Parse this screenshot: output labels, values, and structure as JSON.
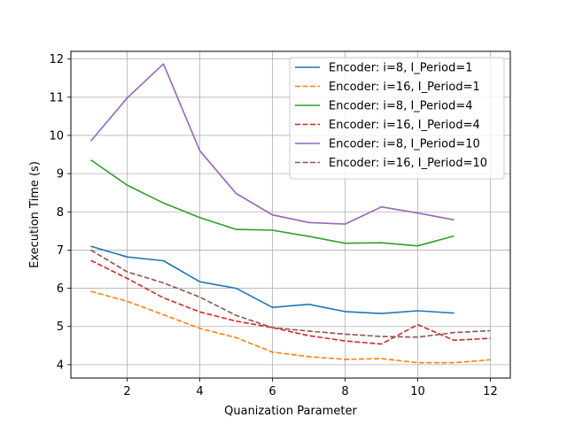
{
  "chart_data": {
    "type": "line",
    "xlabel": "Quanization Parameter",
    "ylabel": "Execution Time (s)",
    "xlim": [
      0.45,
      12.55
    ],
    "ylim": [
      3.65,
      12.2
    ],
    "xticks": [
      2,
      4,
      6,
      8,
      10,
      12
    ],
    "yticks": [
      4,
      5,
      6,
      7,
      8,
      9,
      10,
      11,
      12
    ],
    "grid": true,
    "legend_position": "top-right",
    "series": [
      {
        "name": "Encoder: i=8, I_Period=1",
        "color": "#1f77b4",
        "dash": "solid",
        "x": [
          1,
          2,
          3,
          4,
          5,
          6,
          7,
          8,
          9,
          10,
          11
        ],
        "y": [
          7.1,
          6.82,
          6.72,
          6.17,
          6.0,
          5.5,
          5.58,
          5.39,
          5.34,
          5.41,
          5.35
        ]
      },
      {
        "name": "Encoder: i=16, I_Period=1",
        "color": "#ff7f0e",
        "dash": "dashed",
        "x": [
          1,
          2,
          3,
          4,
          5,
          6,
          7,
          8,
          9,
          10,
          11,
          12
        ],
        "y": [
          5.92,
          5.66,
          5.31,
          4.95,
          4.71,
          4.33,
          4.21,
          4.14,
          4.16,
          4.05,
          4.05,
          4.13
        ]
      },
      {
        "name": "Encoder: i=8, I_Period=4",
        "color": "#2ca02c",
        "dash": "solid",
        "x": [
          1,
          2,
          3,
          4,
          5,
          6,
          7,
          8,
          9,
          10,
          11
        ],
        "y": [
          9.36,
          8.7,
          8.23,
          7.85,
          7.54,
          7.52,
          7.36,
          7.18,
          7.19,
          7.11,
          7.37
        ]
      },
      {
        "name": "Encoder: i=16, I_Period=4",
        "color": "#d62728",
        "dash": "dashed",
        "x": [
          1,
          2,
          3,
          4,
          5,
          6,
          7,
          8,
          9,
          10,
          11,
          12
        ],
        "y": [
          6.73,
          6.26,
          5.75,
          5.38,
          5.14,
          4.97,
          4.76,
          4.62,
          4.54,
          5.05,
          4.64,
          4.69
        ]
      },
      {
        "name": "Encoder: i=8, I_Period=10",
        "color": "#9467bd",
        "dash": "solid",
        "x": [
          1,
          2,
          3,
          4,
          5,
          6,
          7,
          8,
          9,
          10,
          11
        ],
        "y": [
          9.85,
          10.98,
          11.87,
          9.6,
          8.48,
          7.92,
          7.72,
          7.68,
          8.13,
          7.97,
          7.79
        ]
      },
      {
        "name": "Encoder: i=16, I_Period=10",
        "color": "#8c564b",
        "dash": "dashed",
        "x": [
          1,
          2,
          3,
          4,
          5,
          6,
          7,
          8,
          9,
          10,
          11,
          12
        ],
        "y": [
          7.0,
          6.43,
          6.14,
          5.77,
          5.29,
          4.97,
          4.88,
          4.8,
          4.74,
          4.72,
          4.84,
          4.89
        ]
      }
    ]
  }
}
